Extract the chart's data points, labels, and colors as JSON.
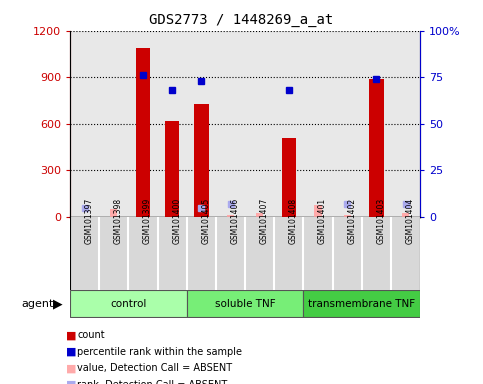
{
  "title": "GDS2773 / 1448269_a_at",
  "samples": [
    "GSM101397",
    "GSM101398",
    "GSM101399",
    "GSM101400",
    "GSM101405",
    "GSM101406",
    "GSM101407",
    "GSM101408",
    "GSM101401",
    "GSM101402",
    "GSM101403",
    "GSM101404"
  ],
  "groups": [
    {
      "label": "control",
      "start": 0,
      "end": 4,
      "color": "#aaffaa"
    },
    {
      "label": "soluble TNF",
      "start": 4,
      "end": 8,
      "color": "#77ee77"
    },
    {
      "label": "transmembrane TNF",
      "start": 8,
      "end": 12,
      "color": "#44cc44"
    }
  ],
  "counts": [
    null,
    null,
    1090,
    620,
    730,
    null,
    null,
    510,
    null,
    null,
    890,
    null
  ],
  "ranks_pct": [
    null,
    null,
    76,
    68,
    73,
    null,
    null,
    68,
    null,
    null,
    74,
    null
  ],
  "absent_counts": [
    null,
    50,
    null,
    null,
    null,
    15,
    25,
    null,
    80,
    15,
    null,
    25
  ],
  "absent_ranks_pct": [
    5,
    null,
    null,
    null,
    5,
    7,
    null,
    null,
    null,
    7,
    null,
    7
  ],
  "ylim_left": [
    0,
    1200
  ],
  "ylim_right": [
    0,
    100
  ],
  "left_ticks": [
    0,
    300,
    600,
    900,
    1200
  ],
  "right_ticks": [
    0,
    25,
    50,
    75,
    100
  ],
  "bar_color": "#cc0000",
  "rank_color": "#0000cc",
  "absent_count_color": "#ffaaaa",
  "absent_rank_color": "#aaaaee",
  "ylabel_left_color": "#cc0000",
  "ylabel_right_color": "#0000cc"
}
